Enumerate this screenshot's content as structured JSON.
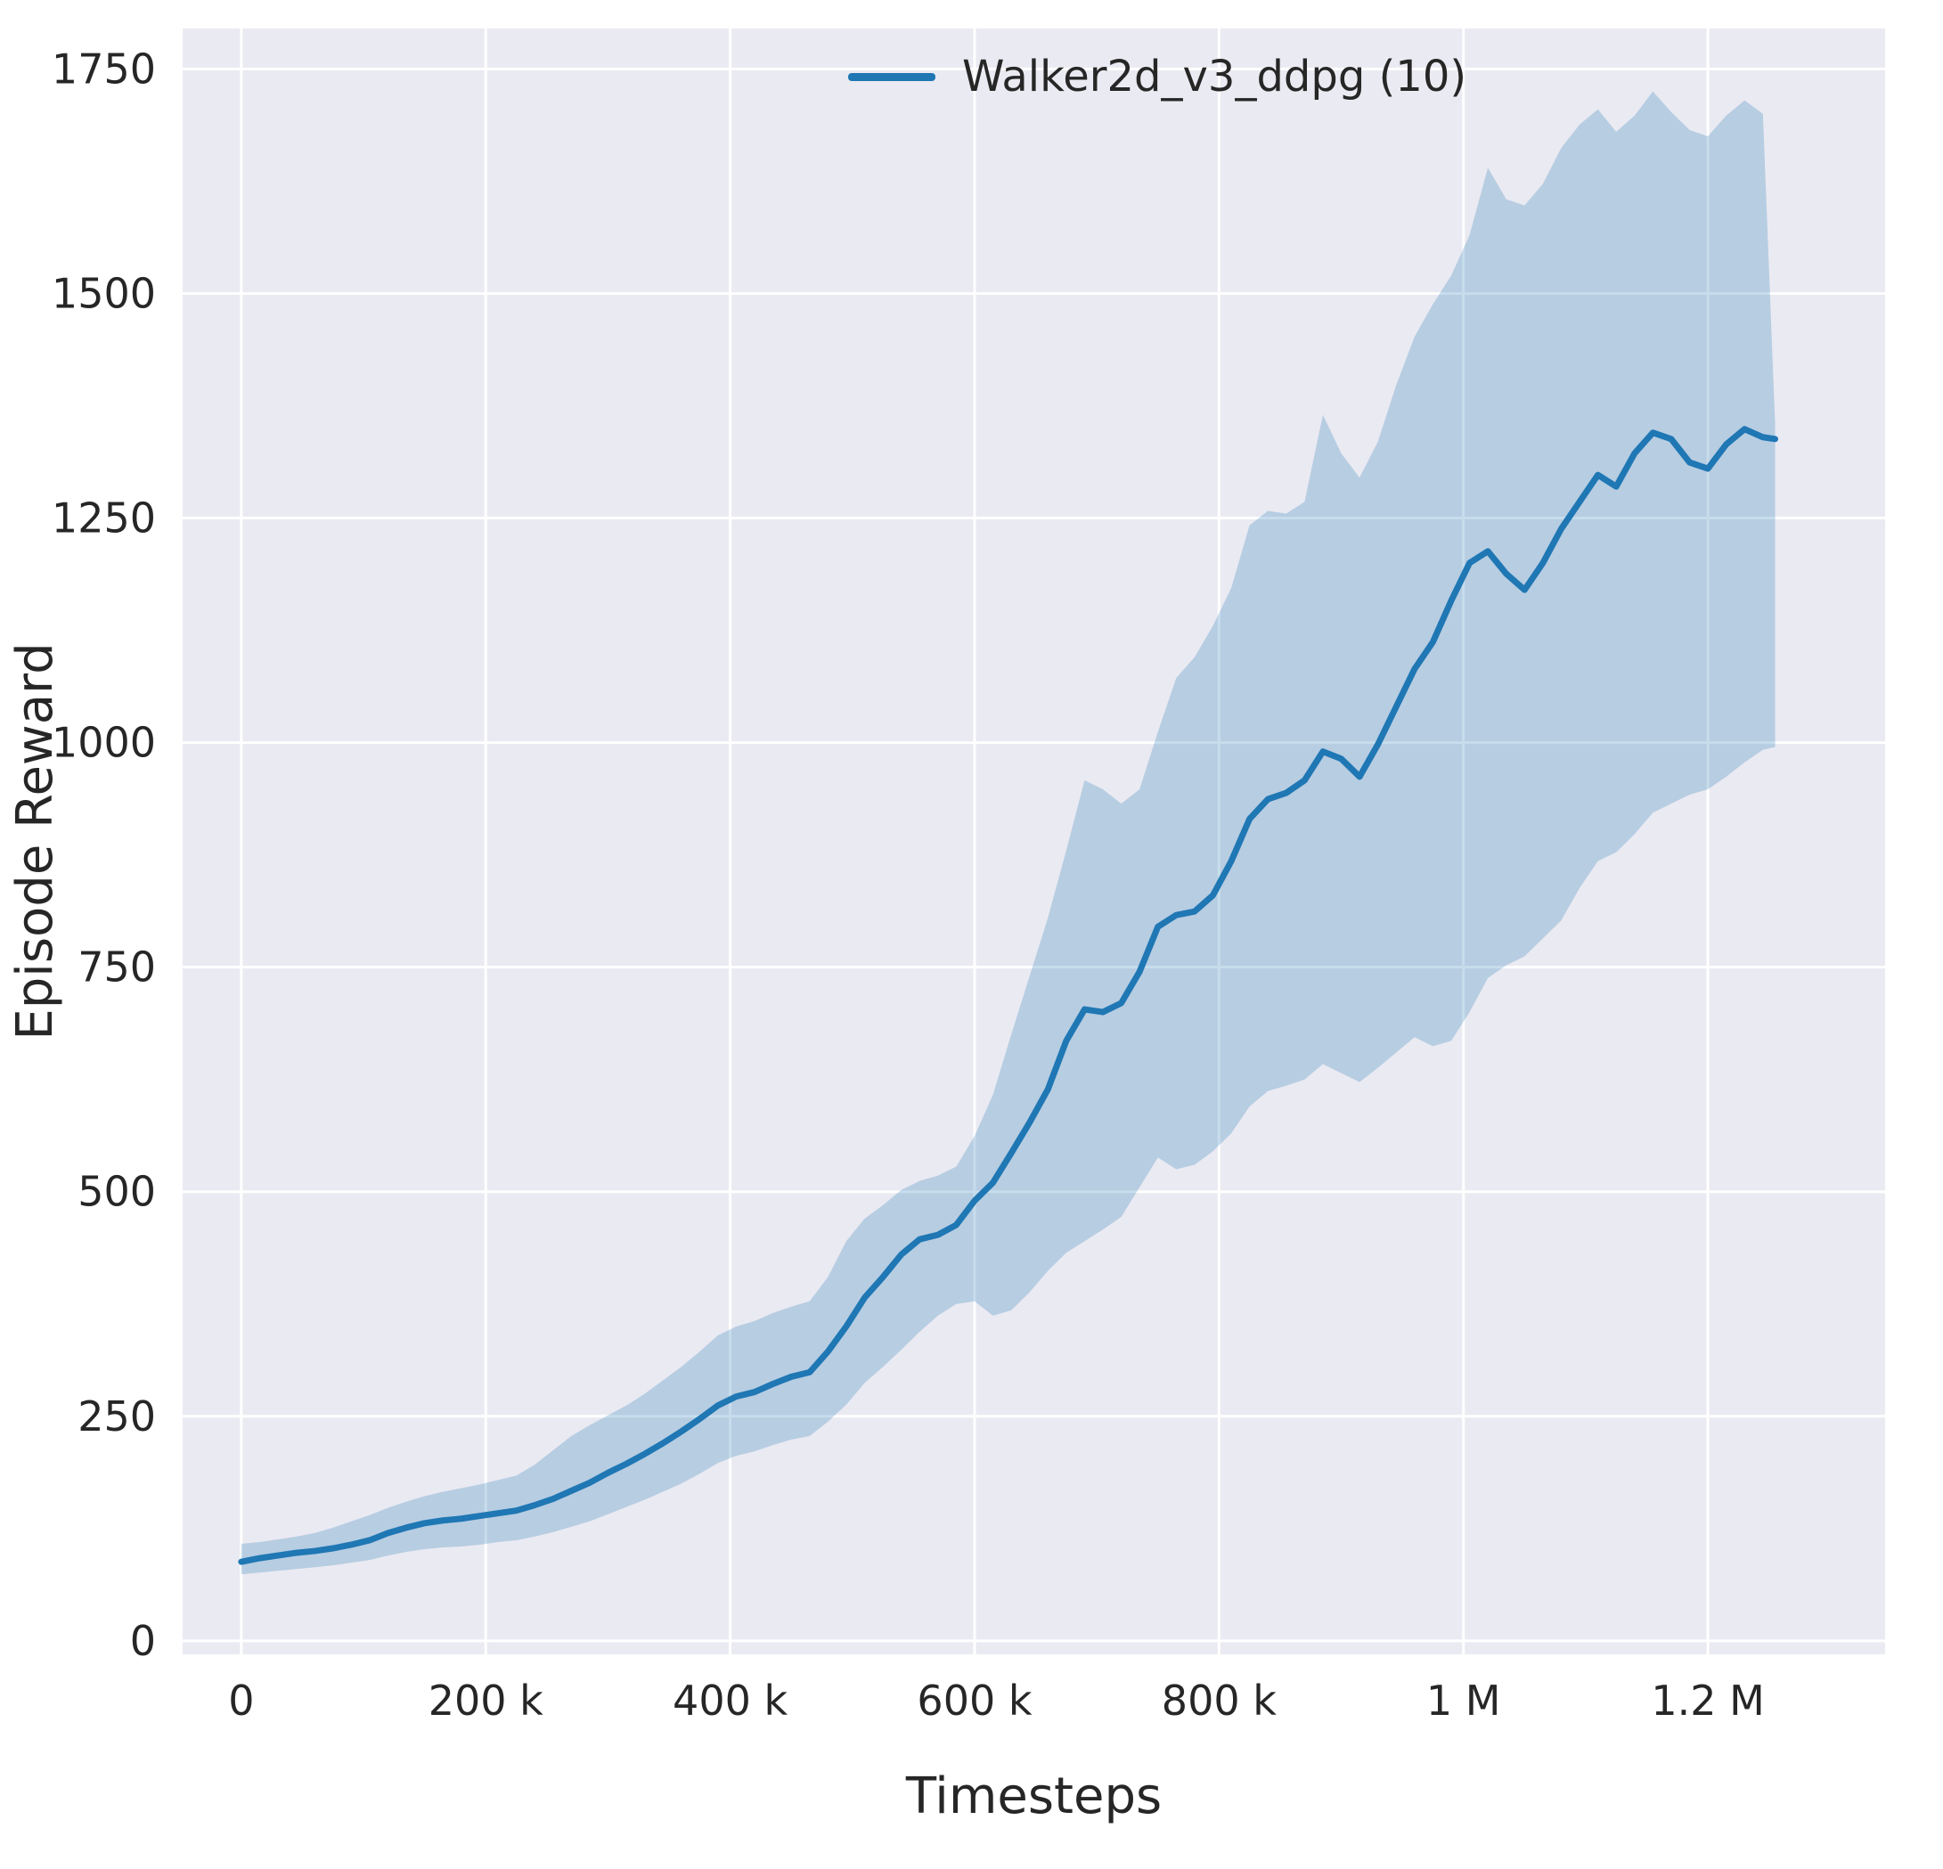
{
  "figure": {
    "background": "#ffffff"
  },
  "legend": {
    "label": "Walker2d_v3_ddpg (10)"
  },
  "chart_data": {
    "type": "line",
    "title": "",
    "xlabel": "Timesteps",
    "ylabel": "Episode Reward",
    "x_unit": "thousand timesteps",
    "xlim": [
      -48,
      1345
    ],
    "ylim": [
      -15,
      1795
    ],
    "grid": true,
    "legend_position": "upper right area inside plot",
    "xticks": {
      "values": [
        0,
        200,
        400,
        600,
        800,
        1000,
        1200
      ],
      "labels": [
        "0",
        "200 k",
        "400 k",
        "600 k",
        "800 k",
        "1 M",
        "1.2 M"
      ]
    },
    "yticks": {
      "values": [
        0,
        250,
        500,
        750,
        1000,
        1250,
        1500,
        1750
      ],
      "labels": [
        "0",
        "250",
        "500",
        "750",
        "1000",
        "1250",
        "1500",
        "1750"
      ]
    },
    "colors": {
      "line": "#1f77b4",
      "band": "#1f77b4",
      "band_opacity": 0.25,
      "axes_bg": "#eaeaf2",
      "grid": "#ffffff",
      "text": "#262626"
    },
    "series": [
      {
        "name": "Walker2d_v3_ddpg (10)",
        "x": [
          0,
          15,
          30,
          45,
          60,
          75,
          90,
          105,
          120,
          135,
          150,
          165,
          180,
          195,
          210,
          225,
          240,
          255,
          270,
          285,
          300,
          315,
          330,
          345,
          360,
          375,
          390,
          405,
          420,
          435,
          450,
          465,
          480,
          495,
          510,
          525,
          540,
          555,
          570,
          585,
          600,
          615,
          630,
          645,
          660,
          675,
          690,
          705,
          720,
          735,
          750,
          765,
          780,
          795,
          810,
          825,
          840,
          855,
          870,
          885,
          900,
          915,
          930,
          945,
          960,
          975,
          990,
          1005,
          1020,
          1035,
          1050,
          1065,
          1080,
          1095,
          1110,
          1125,
          1140,
          1155,
          1170,
          1185,
          1200,
          1215,
          1230,
          1245,
          1255
        ],
        "mean": [
          88,
          92,
          95,
          98,
          100,
          103,
          107,
          112,
          120,
          126,
          131,
          134,
          136,
          139,
          142,
          145,
          151,
          158,
          167,
          176,
          187,
          197,
          208,
          220,
          233,
          247,
          262,
          272,
          277,
          286,
          294,
          299,
          322,
          350,
          382,
          405,
          430,
          447,
          452,
          463,
          490,
          510,
          543,
          577,
          614,
          668,
          703,
          700,
          710,
          745,
          795,
          808,
          812,
          830,
          868,
          915,
          937,
          944,
          958,
          990,
          982,
          962,
          998,
          1040,
          1082,
          1112,
          1158,
          1200,
          1213,
          1188,
          1170,
          1200,
          1238,
          1268,
          1298,
          1285,
          1322,
          1345,
          1338,
          1312,
          1305,
          1332,
          1349,
          1340,
          1338
        ],
        "lower": [
          74,
          76,
          78,
          80,
          82,
          84,
          87,
          90,
          95,
          99,
          102,
          104,
          105,
          107,
          110,
          112,
          116,
          121,
          127,
          133,
          141,
          149,
          157,
          166,
          175,
          186,
          198,
          206,
          211,
          218,
          224,
          228,
          244,
          263,
          287,
          305,
          324,
          344,
          362,
          375,
          378,
          362,
          368,
          388,
          412,
          432,
          445,
          458,
          472,
          505,
          538,
          525,
          530,
          545,
          565,
          595,
          612,
          618,
          625,
          642,
          632,
          622,
          638,
          655,
          672,
          662,
          668,
          700,
          738,
          752,
          762,
          782,
          802,
          838,
          868,
          878,
          898,
          922,
          932,
          942,
          948,
          962,
          978,
          992,
          995
        ],
        "upper": [
          108,
          110,
          113,
          116,
          120,
          126,
          133,
          140,
          148,
          155,
          161,
          166,
          170,
          174,
          179,
          184,
          196,
          212,
          228,
          240,
          251,
          262,
          275,
          290,
          305,
          322,
          340,
          350,
          356,
          365,
          372,
          378,
          405,
          445,
          470,
          485,
          502,
          512,
          518,
          528,
          562,
          608,
          675,
          740,
          805,
          880,
          958,
          948,
          932,
          948,
          1012,
          1072,
          1095,
          1130,
          1172,
          1242,
          1258,
          1255,
          1268,
          1365,
          1322,
          1295,
          1335,
          1398,
          1452,
          1488,
          1520,
          1565,
          1640,
          1605,
          1598,
          1622,
          1662,
          1688,
          1705,
          1680,
          1698,
          1725,
          1702,
          1682,
          1675,
          1698,
          1715,
          1700,
          1355
        ]
      }
    ]
  }
}
